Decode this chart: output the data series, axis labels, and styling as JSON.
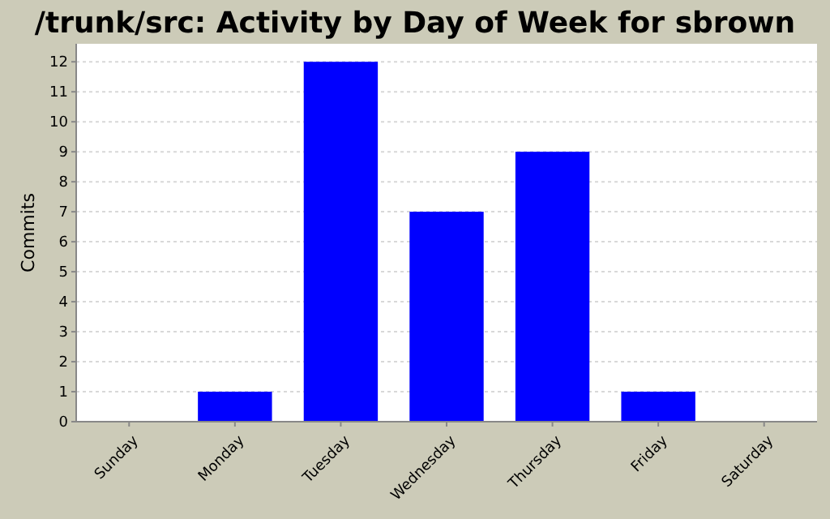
{
  "chart_data": {
    "type": "bar",
    "title": "/trunk/src: Activity by Day of Week for sbrown",
    "ylabel": "Commits",
    "categories": [
      "Sunday",
      "Monday",
      "Tuesday",
      "Wednesday",
      "Thursday",
      "Friday",
      "Saturday"
    ],
    "values": [
      0,
      1,
      12,
      7,
      9,
      1,
      0
    ],
    "color": "#0000ff",
    "ylim": [
      0,
      12.6
    ],
    "yticks": [
      0,
      1,
      2,
      3,
      4,
      5,
      6,
      7,
      8,
      9,
      10,
      11,
      12
    ],
    "grid": "y"
  }
}
